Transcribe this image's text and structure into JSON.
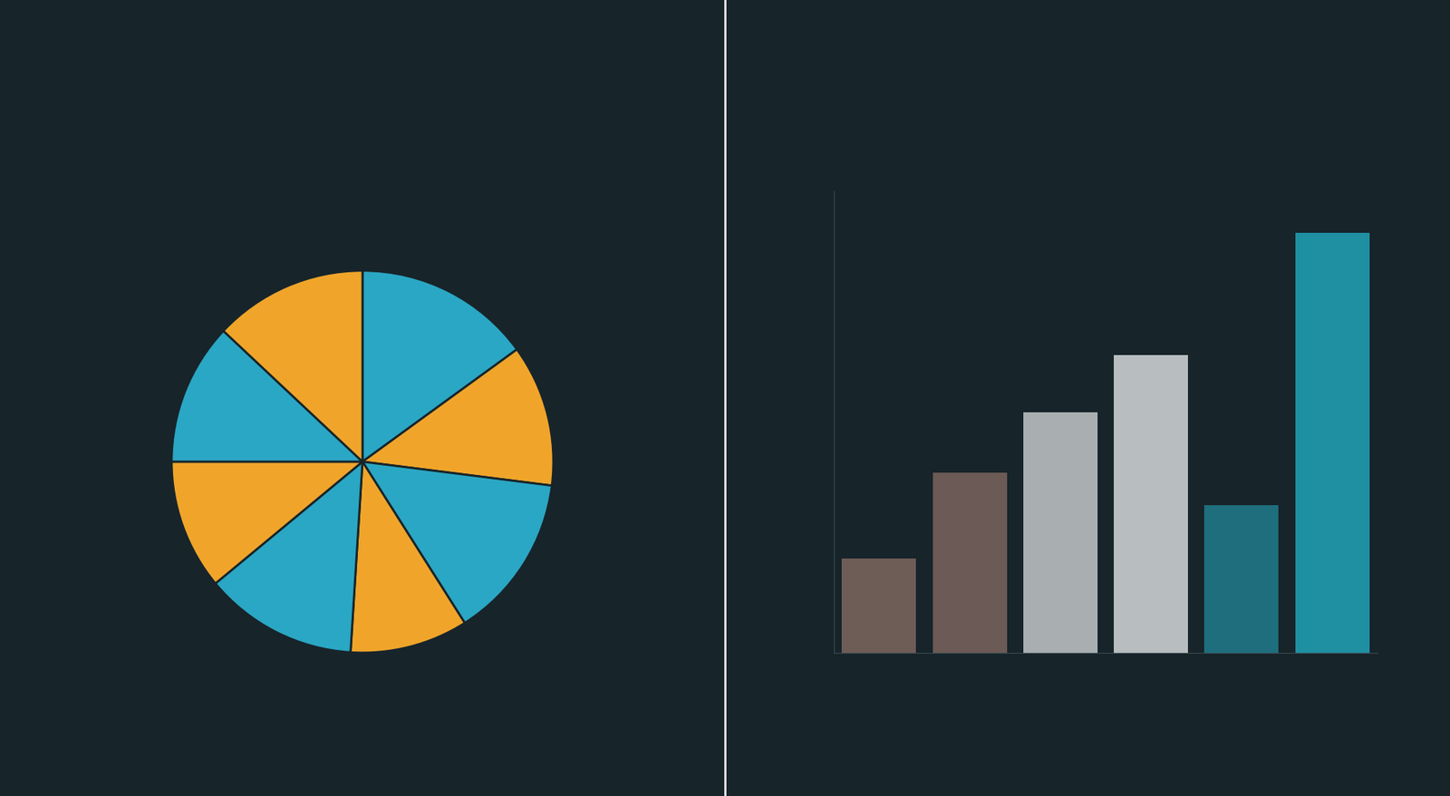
{
  "chart_data": [
    {
      "type": "pie",
      "values": [
        15,
        12,
        14,
        10,
        13,
        11,
        12,
        13
      ],
      "colors": [
        "#2aa7c4",
        "#f0a52a",
        "#2aa7c4",
        "#f0a52a",
        "#2aa7c4",
        "#f0a52a",
        "#2aa7c4",
        "#f0a52a"
      ],
      "tick_labels": false
    },
    {
      "type": "bar",
      "categories": [
        null,
        null,
        null,
        null,
        null,
        null
      ],
      "values": [
        102,
        195,
        260,
        322,
        160,
        455
      ],
      "colors": [
        "#6e5c57",
        "#6b5a55",
        "#a9afb1",
        "#b8bec0",
        "#1f6e7d",
        "#1f8fa2"
      ],
      "ylim": [
        0,
        500
      ],
      "tick_labels": false
    }
  ]
}
